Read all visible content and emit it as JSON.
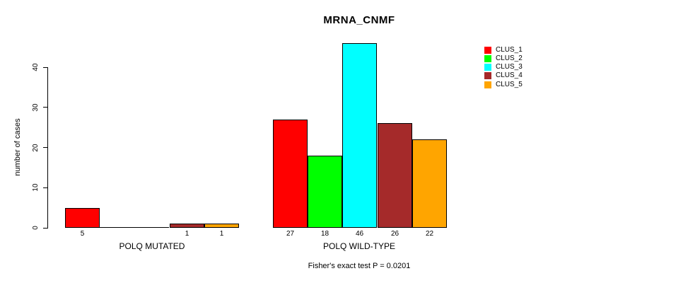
{
  "chart_data": {
    "type": "bar",
    "title": "MRNA_CNMF",
    "ylabel": "number of cases",
    "annotation": "Fisher's exact test P = 0.0201",
    "categories": [
      "POLQ MUTATED",
      "POLQ WILD-TYPE"
    ],
    "series": [
      {
        "name": "CLUS_1",
        "color": "#FF0000",
        "values": [
          5,
          27
        ]
      },
      {
        "name": "CLUS_2",
        "color": "#00FF00",
        "values": [
          0,
          18
        ]
      },
      {
        "name": "CLUS_3",
        "color": "#00FFFF",
        "values": [
          0,
          46
        ]
      },
      {
        "name": "CLUS_4",
        "color": "#A52A2A",
        "values": [
          1,
          26
        ]
      },
      {
        "name": "CLUS_5",
        "color": "#FFA500",
        "values": [
          1,
          22
        ]
      }
    ],
    "bar_value_labels": {
      "shown": true,
      "zeros_hidden": true
    },
    "yticks": [
      0,
      10,
      20,
      30,
      40
    ],
    "ylim": [
      0,
      46
    ],
    "grid": false,
    "legend_position": "top-right"
  }
}
